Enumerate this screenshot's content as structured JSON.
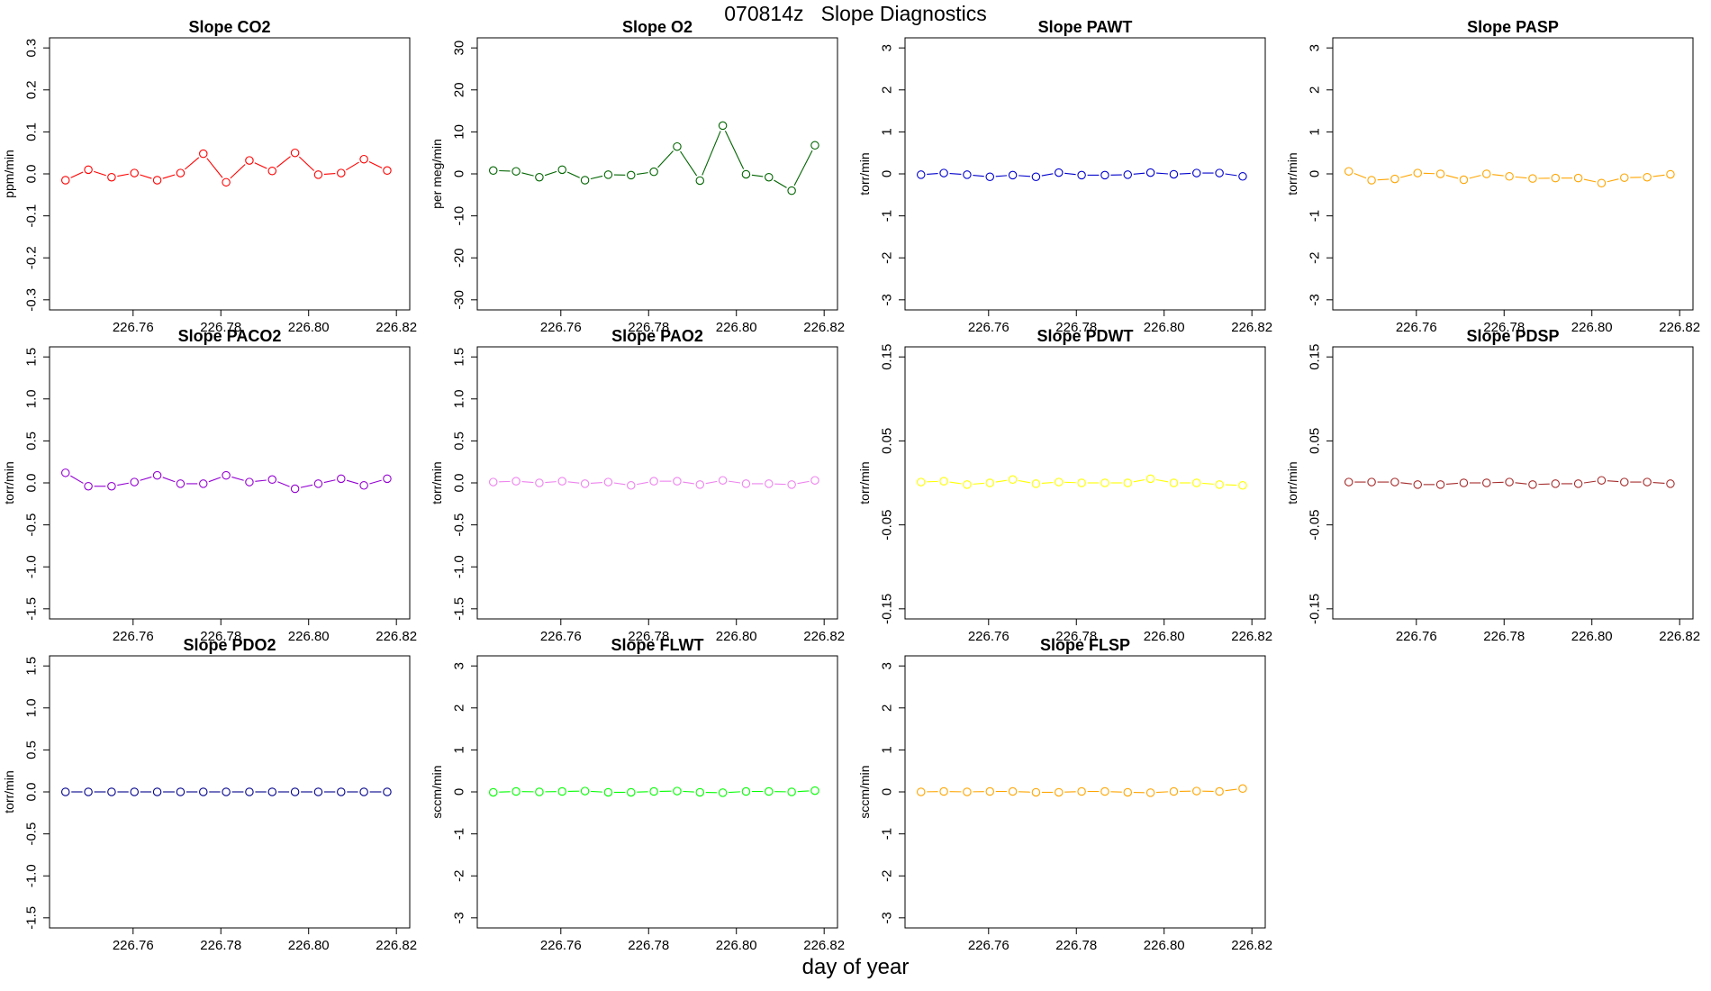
{
  "page": {
    "title": "070814z   Slope Diagnostics",
    "x_axis_label": "day of year"
  },
  "chart_data": [
    {
      "type": "line",
      "title": "Slope CO2",
      "ylabel": "ppm/min",
      "color": "#ff0000",
      "xlim": [
        226.744,
        226.82
      ],
      "ylim": [
        -0.3,
        0.3
      ],
      "xticks": [
        226.76,
        226.78,
        226.8,
        226.82
      ],
      "xtick_labels": [
        "226.76",
        "226.78",
        "226.80",
        "226.82"
      ],
      "yticks": [
        -0.3,
        -0.2,
        -0.1,
        0.0,
        0.1,
        0.2,
        0.3
      ],
      "ytick_labels": [
        "-0.3",
        "-0.2",
        "-0.1",
        "0.0",
        "0.1",
        "0.2",
        "0.3"
      ],
      "x": [
        226.7446,
        226.7498,
        226.7551,
        226.7603,
        226.7655,
        226.7708,
        226.776,
        226.7812,
        226.7865,
        226.7917,
        226.7969,
        226.8022,
        226.8074,
        226.8126,
        226.8179
      ],
      "y": [
        -0.015,
        0.01,
        -0.008,
        0.002,
        -0.015,
        0.002,
        0.048,
        -0.02,
        0.032,
        0.007,
        0.05,
        -0.002,
        0.002,
        0.035,
        0.008
      ]
    },
    {
      "type": "line",
      "title": "Slope O2",
      "ylabel": "per meg/min",
      "color": "#006400",
      "xlim": [
        226.744,
        226.82
      ],
      "ylim": [
        -30,
        30
      ],
      "xticks": [
        226.76,
        226.78,
        226.8,
        226.82
      ],
      "xtick_labels": [
        "226.76",
        "226.78",
        "226.80",
        "226.82"
      ],
      "yticks": [
        -30,
        -20,
        -10,
        0,
        10,
        20,
        30
      ],
      "ytick_labels": [
        "-30",
        "-20",
        "-10",
        "0",
        "10",
        "20",
        "30"
      ],
      "x": [
        226.7446,
        226.7498,
        226.7551,
        226.7603,
        226.7655,
        226.7708,
        226.776,
        226.7812,
        226.7865,
        226.7917,
        226.7969,
        226.8022,
        226.8074,
        226.8126,
        226.8179
      ],
      "y": [
        0.8,
        0.6,
        -0.8,
        1.0,
        -1.5,
        -0.2,
        -0.3,
        0.5,
        6.5,
        -1.6,
        11.5,
        -0.1,
        -0.8,
        -4.0,
        6.8
      ]
    },
    {
      "type": "line",
      "title": "Slope PAWT",
      "ylabel": "torr/min",
      "color": "#0000cd",
      "xlim": [
        226.744,
        226.82
      ],
      "ylim": [
        -3,
        3
      ],
      "xticks": [
        226.76,
        226.78,
        226.8,
        226.82
      ],
      "xtick_labels": [
        "226.76",
        "226.78",
        "226.80",
        "226.82"
      ],
      "yticks": [
        -3,
        -2,
        -1,
        0,
        1,
        2,
        3
      ],
      "ytick_labels": [
        "-3",
        "-2",
        "-1",
        "0",
        "1",
        "2",
        "3"
      ],
      "x": [
        226.7446,
        226.7498,
        226.7551,
        226.7603,
        226.7655,
        226.7708,
        226.776,
        226.7812,
        226.7865,
        226.7917,
        226.7969,
        226.8022,
        226.8074,
        226.8126,
        226.8179
      ],
      "y": [
        -0.02,
        0.02,
        -0.02,
        -0.07,
        -0.03,
        -0.07,
        0.03,
        -0.03,
        -0.03,
        -0.02,
        0.03,
        -0.01,
        0.02,
        0.02,
        -0.06
      ]
    },
    {
      "type": "line",
      "title": "Slope PASP",
      "ylabel": "torr/min",
      "color": "#ffa500",
      "xlim": [
        226.744,
        226.82
      ],
      "ylim": [
        -3,
        3
      ],
      "xticks": [
        226.76,
        226.78,
        226.8,
        226.82
      ],
      "xtick_labels": [
        "226.76",
        "226.78",
        "226.80",
        "226.82"
      ],
      "yticks": [
        -3,
        -2,
        -1,
        0,
        1,
        2,
        3
      ],
      "ytick_labels": [
        "-3",
        "-2",
        "-1",
        "0",
        "1",
        "2",
        "3"
      ],
      "x": [
        226.7446,
        226.7498,
        226.7551,
        226.7603,
        226.7655,
        226.7708,
        226.776,
        226.7812,
        226.7865,
        226.7917,
        226.7969,
        226.8022,
        226.8074,
        226.8126,
        226.8179
      ],
      "y": [
        0.06,
        -0.15,
        -0.12,
        0.02,
        0.0,
        -0.14,
        0.0,
        -0.06,
        -0.11,
        -0.1,
        -0.1,
        -0.22,
        -0.09,
        -0.08,
        -0.01
      ]
    },
    {
      "type": "line",
      "title": "Slope PACO2",
      "ylabel": "torr/min",
      "color": "#9400d3",
      "xlim": [
        226.744,
        226.82
      ],
      "ylim": [
        -1.5,
        1.5
      ],
      "xticks": [
        226.76,
        226.78,
        226.8,
        226.82
      ],
      "xtick_labels": [
        "226.76",
        "226.78",
        "226.80",
        "226.82"
      ],
      "yticks": [
        -1.5,
        -1.0,
        -0.5,
        0.0,
        0.5,
        1.0,
        1.5
      ],
      "ytick_labels": [
        "-1.5",
        "-1.0",
        "-0.5",
        "0.0",
        "0.5",
        "1.0",
        "1.5"
      ],
      "x": [
        226.7446,
        226.7498,
        226.7551,
        226.7603,
        226.7655,
        226.7708,
        226.776,
        226.7812,
        226.7865,
        226.7917,
        226.7969,
        226.8022,
        226.8074,
        226.8126,
        226.8179
      ],
      "y": [
        0.12,
        -0.04,
        -0.04,
        0.01,
        0.09,
        -0.01,
        -0.01,
        0.09,
        0.01,
        0.04,
        -0.07,
        -0.01,
        0.05,
        -0.03,
        0.05
      ]
    },
    {
      "type": "line",
      "title": "Slope PAO2",
      "ylabel": "torr/min",
      "color": "#ee82ee",
      "xlim": [
        226.744,
        226.82
      ],
      "ylim": [
        -1.5,
        1.5
      ],
      "xticks": [
        226.76,
        226.78,
        226.8,
        226.82
      ],
      "xtick_labels": [
        "226.76",
        "226.78",
        "226.80",
        "226.82"
      ],
      "yticks": [
        -1.5,
        -1.0,
        -0.5,
        0.0,
        0.5,
        1.0,
        1.5
      ],
      "ytick_labels": [
        "-1.5",
        "-1.0",
        "-0.5",
        "0.0",
        "0.5",
        "1.0",
        "1.5"
      ],
      "x": [
        226.7446,
        226.7498,
        226.7551,
        226.7603,
        226.7655,
        226.7708,
        226.776,
        226.7812,
        226.7865,
        226.7917,
        226.7969,
        226.8022,
        226.8074,
        226.8126,
        226.8179
      ],
      "y": [
        0.01,
        0.02,
        0.0,
        0.02,
        -0.01,
        0.01,
        -0.03,
        0.02,
        0.02,
        -0.02,
        0.03,
        -0.01,
        -0.01,
        -0.02,
        0.03
      ]
    },
    {
      "type": "line",
      "title": "Slope PDWT",
      "ylabel": "torr/min",
      "color": "#ffff00",
      "xlim": [
        226.744,
        226.82
      ],
      "ylim": [
        -0.15,
        0.15
      ],
      "xticks": [
        226.76,
        226.78,
        226.8,
        226.82
      ],
      "xtick_labels": [
        "226.76",
        "226.78",
        "226.80",
        "226.82"
      ],
      "yticks": [
        -0.15,
        -0.05,
        0.05,
        0.15
      ],
      "ytick_labels": [
        "-0.15",
        "-0.05",
        "0.05",
        "0.15"
      ],
      "x": [
        226.7446,
        226.7498,
        226.7551,
        226.7603,
        226.7655,
        226.7708,
        226.776,
        226.7812,
        226.7865,
        226.7917,
        226.7969,
        226.8022,
        226.8074,
        226.8126,
        226.8179
      ],
      "y": [
        0.001,
        0.002,
        -0.002,
        0.0,
        0.004,
        -0.001,
        0.001,
        0.0,
        0.0,
        0.0,
        0.005,
        0.0,
        0.0,
        -0.002,
        -0.003
      ]
    },
    {
      "type": "line",
      "title": "Slope PDSP",
      "ylabel": "torr/min",
      "color": "#a52a2a",
      "xlim": [
        226.744,
        226.82
      ],
      "ylim": [
        -0.15,
        0.15
      ],
      "xticks": [
        226.76,
        226.78,
        226.8,
        226.82
      ],
      "xtick_labels": [
        "226.76",
        "226.78",
        "226.80",
        "226.82"
      ],
      "yticks": [
        -0.15,
        -0.05,
        0.05,
        0.15
      ],
      "ytick_labels": [
        "-0.15",
        "-0.05",
        "0.05",
        "0.15"
      ],
      "x": [
        226.7446,
        226.7498,
        226.7551,
        226.7603,
        226.7655,
        226.7708,
        226.776,
        226.7812,
        226.7865,
        226.7917,
        226.7969,
        226.8022,
        226.8074,
        226.8126,
        226.8179
      ],
      "y": [
        0.001,
        0.001,
        0.001,
        -0.002,
        -0.002,
        0.0,
        0.0,
        0.001,
        -0.002,
        -0.001,
        -0.001,
        0.003,
        0.001,
        0.001,
        -0.001
      ]
    },
    {
      "type": "line",
      "title": "Slope PDO2",
      "ylabel": "torr/min",
      "color": "#00008b",
      "xlim": [
        226.744,
        226.82
      ],
      "ylim": [
        -1.5,
        1.5
      ],
      "xticks": [
        226.76,
        226.78,
        226.8,
        226.82
      ],
      "xtick_labels": [
        "226.76",
        "226.78",
        "226.80",
        "226.82"
      ],
      "yticks": [
        -1.5,
        -1.0,
        -0.5,
        0.0,
        0.5,
        1.0,
        1.5
      ],
      "ytick_labels": [
        "-1.5",
        "-1.0",
        "-0.5",
        "0.0",
        "0.5",
        "1.0",
        "1.5"
      ],
      "x": [
        226.7446,
        226.7498,
        226.7551,
        226.7603,
        226.7655,
        226.7708,
        226.776,
        226.7812,
        226.7865,
        226.7917,
        226.7969,
        226.8022,
        226.8074,
        226.8126,
        226.8179
      ],
      "y": [
        0.0,
        0.0,
        0.0,
        0.0,
        0.0,
        0.0,
        0.0,
        0.0,
        0.0,
        0.0,
        0.0,
        0.0,
        0.0,
        0.0,
        0.0
      ]
    },
    {
      "type": "line",
      "title": "Slope FLWT",
      "ylabel": "sccm/min",
      "color": "#00ff00",
      "xlim": [
        226.744,
        226.82
      ],
      "ylim": [
        -3,
        3
      ],
      "xticks": [
        226.76,
        226.78,
        226.8,
        226.82
      ],
      "xtick_labels": [
        "226.76",
        "226.78",
        "226.80",
        "226.82"
      ],
      "yticks": [
        -3,
        -2,
        -1,
        0,
        1,
        2,
        3
      ],
      "ytick_labels": [
        "-3",
        "-2",
        "-1",
        "0",
        "1",
        "2",
        "3"
      ],
      "x": [
        226.7446,
        226.7498,
        226.7551,
        226.7603,
        226.7655,
        226.7708,
        226.776,
        226.7812,
        226.7865,
        226.7917,
        226.7969,
        226.8022,
        226.8074,
        226.8126,
        226.8179
      ],
      "y": [
        -0.01,
        0.01,
        0.0,
        0.01,
        0.02,
        -0.01,
        -0.01,
        0.01,
        0.02,
        -0.01,
        -0.02,
        0.01,
        0.01,
        0.0,
        0.03
      ]
    },
    {
      "type": "line",
      "title": "Slope FLSP",
      "ylabel": "sccm/min",
      "color": "#ffa500",
      "xlim": [
        226.744,
        226.82
      ],
      "ylim": [
        -3,
        3
      ],
      "xticks": [
        226.76,
        226.78,
        226.8,
        226.82
      ],
      "xtick_labels": [
        "226.76",
        "226.78",
        "226.80",
        "226.82"
      ],
      "yticks": [
        -3,
        -2,
        -1,
        0,
        1,
        2,
        3
      ],
      "ytick_labels": [
        "-3",
        "-2",
        "-1",
        "0",
        "1",
        "2",
        "3"
      ],
      "x": [
        226.7446,
        226.7498,
        226.7551,
        226.7603,
        226.7655,
        226.7708,
        226.776,
        226.7812,
        226.7865,
        226.7917,
        226.7969,
        226.8022,
        226.8074,
        226.8126,
        226.8179
      ],
      "y": [
        0.0,
        0.01,
        0.0,
        0.01,
        0.01,
        -0.01,
        -0.01,
        0.01,
        0.01,
        -0.01,
        -0.02,
        0.01,
        0.02,
        0.01,
        0.08
      ]
    }
  ]
}
